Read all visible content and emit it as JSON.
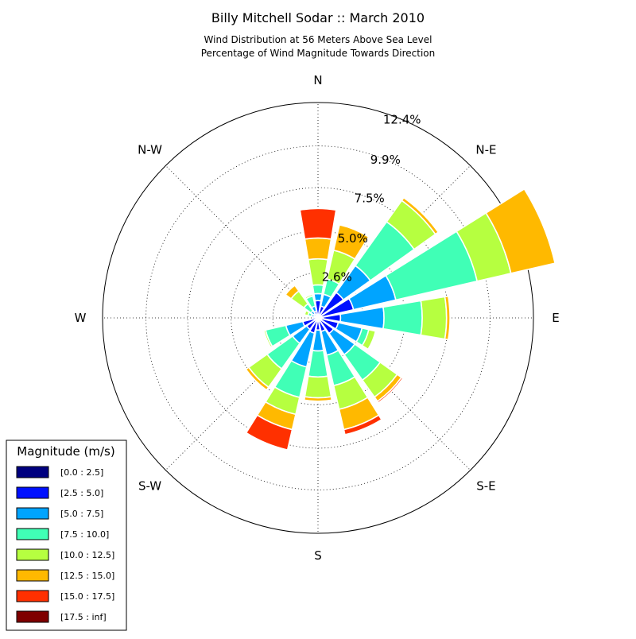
{
  "title": "Billy Mitchell Sodar :: March 2010",
  "subtitle_lines": [
    "Wind Distribution at 56 Meters Above Sea Level",
    "Percentage of Wind Magnitude Towards Direction"
  ],
  "chart_data": {
    "type": "windrose",
    "title": "Billy Mitchell Sodar :: March 2010",
    "subtitle": "Wind Distribution at 56 Meters Above Sea Level / Percentage of Wind Magnitude Towards Direction",
    "direction_labels": [
      "N",
      "N-E",
      "E",
      "S-E",
      "S",
      "S-W",
      "W",
      "N-W"
    ],
    "ring_labels": [
      "2.6%",
      "5.0%",
      "7.5%",
      "9.9%",
      "12.4%"
    ],
    "r_max": 12.4,
    "bins": [
      {
        "label": "[0.0 : 2.5]",
        "color": "#00007f"
      },
      {
        "label": "[2.5 : 5.0]",
        "color": "#0010ff"
      },
      {
        "label": "[5.0 : 7.5]",
        "color": "#00a4ff"
      },
      {
        "label": "[7.5 : 10.0]",
        "color": "#40ffb6"
      },
      {
        "label": "[10.0 : 12.5]",
        "color": "#b6ff40"
      },
      {
        "label": "[12.5 : 15.0]",
        "color": "#ffb900"
      },
      {
        "label": "[15.0 : 17.5]",
        "color": "#ff3000"
      },
      {
        "label": "[17.5 : inf]",
        "color": "#7f0000"
      }
    ],
    "directions": [
      {
        "angle": 0,
        "values": [
          0.1,
          0.9,
          0.4,
          0.5,
          1.5,
          1.2,
          1.7,
          0
        ]
      },
      {
        "angle": 22.5,
        "values": [
          0.1,
          0.6,
          0.7,
          0.9,
          1.7,
          1.5,
          0,
          0
        ]
      },
      {
        "angle": 45,
        "values": [
          0.2,
          1.6,
          1.9,
          3.1,
          1.5,
          0.2,
          0,
          0
        ]
      },
      {
        "angle": 67.5,
        "values": [
          0.2,
          1.9,
          2.5,
          4.8,
          2.0,
          2.6,
          0,
          0
        ]
      },
      {
        "angle": 90,
        "values": [
          0.3,
          1.0,
          2.5,
          2.2,
          1.4,
          0.2,
          0,
          0
        ]
      },
      {
        "angle": 112.5,
        "values": [
          0.2,
          1.0,
          1.4,
          0.4,
          0.4,
          0,
          0,
          0
        ]
      },
      {
        "angle": 135,
        "values": [
          0.1,
          1.0,
          1.5,
          1.8,
          1.2,
          0.3,
          0.1,
          0
        ]
      },
      {
        "angle": 157.5,
        "values": [
          0.1,
          0.7,
          1.4,
          1.8,
          1.4,
          1.2,
          0.3,
          0
        ]
      },
      {
        "angle": 180,
        "values": [
          0.1,
          0.6,
          1.2,
          1.5,
          1.2,
          0.2,
          0,
          0
        ]
      },
      {
        "angle": 202.5,
        "values": [
          0.1,
          0.8,
          2.0,
          1.8,
          1.0,
          0.9,
          1.2,
          0
        ]
      },
      {
        "angle": 225,
        "values": [
          0.1,
          0.7,
          1.0,
          1.8,
          1.3,
          0.2,
          0,
          0
        ]
      },
      {
        "angle": 247.5,
        "values": [
          0.1,
          0.8,
          1.0,
          1.2,
          0.1,
          0,
          0,
          0
        ]
      },
      {
        "angle": 270,
        "values": [
          0.1,
          0.2,
          0,
          0,
          0,
          0,
          0,
          0
        ]
      },
      {
        "angle": 292.5,
        "values": [
          0.1,
          0.1,
          0.2,
          0.2,
          0.2,
          0,
          0,
          0
        ]
      },
      {
        "angle": 315,
        "values": [
          0.1,
          0.2,
          0.2,
          0.5,
          0.9,
          0.4,
          0,
          0
        ]
      },
      {
        "angle": 337.5,
        "values": [
          0.1,
          0.3,
          0.3,
          0.6,
          0.1,
          0,
          0,
          0
        ]
      }
    ],
    "grid": true,
    "legend_position": "bottom-left"
  },
  "legend": {
    "title": "Magnitude (m/s)"
  }
}
